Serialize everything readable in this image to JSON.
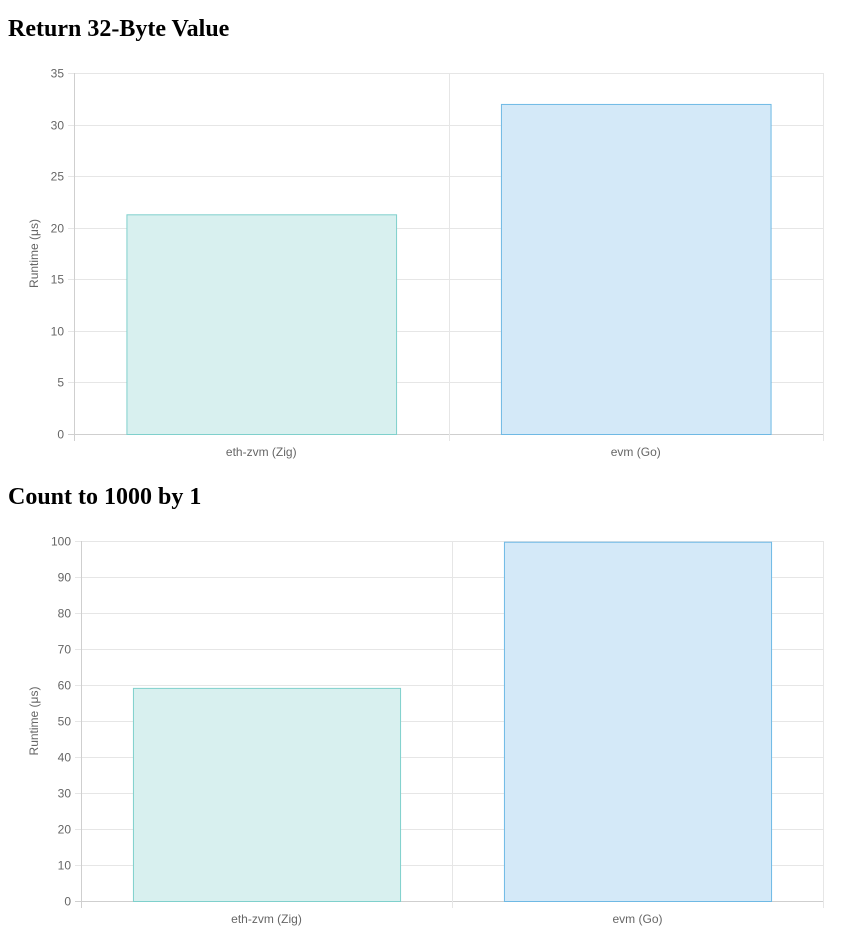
{
  "charts": [
    {
      "title": "Return 32-Byte Value",
      "chart_data": {
        "type": "bar",
        "categories": [
          "eth-zvm (Zig)",
          "evm (Go)"
        ],
        "values": [
          21.3,
          32.0
        ],
        "ylabel": "Runtime (μs)",
        "xlabel": "",
        "ylim": [
          0,
          35
        ],
        "yticks": [
          0,
          5,
          10,
          15,
          20,
          25,
          30,
          35
        ],
        "grid": true,
        "legend": "none",
        "colors": {
          "fills": [
            "#d8f0ef",
            "#d4e9f8"
          ],
          "strokes": [
            "#7fd0cc",
            "#6fb9e4"
          ]
        }
      }
    },
    {
      "title": "Count to 1000 by 1",
      "chart_data": {
        "type": "bar",
        "categories": [
          "eth-zvm (Zig)",
          "evm (Go)"
        ],
        "values": [
          59.2,
          99.8
        ],
        "ylabel": "Runtime (μs)",
        "xlabel": "",
        "ylim": [
          0,
          100
        ],
        "yticks": [
          0,
          10,
          20,
          30,
          40,
          50,
          60,
          70,
          80,
          90,
          100
        ],
        "grid": true,
        "legend": "none",
        "colors": {
          "fills": [
            "#d8f0ef",
            "#d4e9f8"
          ],
          "strokes": [
            "#7fd0cc",
            "#6fb9e4"
          ]
        }
      }
    }
  ]
}
